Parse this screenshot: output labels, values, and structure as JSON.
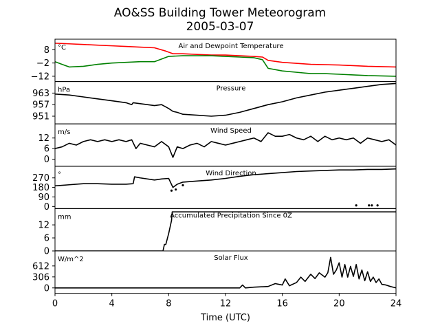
{
  "title": "AO&SS Building Tower Meteorogram",
  "subtitle": "2005-03-07",
  "xlabel": "Time (UTC)",
  "x_ticks": [
    "0",
    "4",
    "8",
    "12",
    "16",
    "20",
    "24"
  ],
  "colors": {
    "temperature": "#ff0000",
    "dewpoint": "#008000",
    "default": "#000000"
  },
  "chart_data": [
    {
      "type": "line",
      "title": "Air and Dewpoint Temperature",
      "unit": "°C",
      "xlim": [
        0,
        24
      ],
      "ylim": [
        -16,
        16
      ],
      "yticks": [
        8,
        -2,
        -12
      ],
      "ytick_labels": [
        "8",
        "−2",
        "−12"
      ],
      "series": [
        {
          "key": "temperature",
          "x": [
            0,
            1,
            2,
            3,
            4,
            5,
            6,
            7,
            7.8,
            8.3,
            9,
            10,
            11,
            12,
            13,
            14,
            14.6,
            15,
            16,
            18,
            20,
            22,
            24
          ],
          "values": [
            13,
            12.5,
            12,
            11.5,
            11,
            10.5,
            10,
            9.5,
            7,
            5,
            5,
            4.5,
            4,
            4,
            3.5,
            3,
            2.5,
            0,
            -1.5,
            -3,
            -3.5,
            -4.5,
            -5
          ]
        },
        {
          "key": "dewpoint",
          "x": [
            0,
            0.5,
            1,
            2,
            3,
            4,
            5,
            6,
            7,
            8,
            9,
            10,
            11,
            12,
            13,
            14,
            14.6,
            15,
            16,
            17,
            18,
            19,
            20,
            22,
            24
          ],
          "values": [
            -1,
            -3,
            -5,
            -4.5,
            -3,
            -2,
            -1.5,
            -1,
            -1,
            3,
            3.5,
            3.5,
            3.5,
            3,
            2.5,
            2,
            0.5,
            -6,
            -8,
            -9,
            -10,
            -10,
            -10.5,
            -11.5,
            -12
          ]
        }
      ]
    },
    {
      "type": "line",
      "title": "Pressure",
      "unit": "hPa",
      "xlim": [
        0,
        24
      ],
      "ylim": [
        947,
        969
      ],
      "yticks": [
        963,
        957,
        951
      ],
      "ytick_labels": [
        "963",
        "957",
        "951"
      ],
      "series": [
        {
          "key": "default",
          "x": [
            0,
            1,
            2,
            3,
            4,
            5,
            5.4,
            5.5,
            6,
            7,
            7.5,
            8,
            8.3,
            8.6,
            9,
            10,
            11,
            12,
            13,
            14,
            15,
            16,
            17,
            18,
            19,
            20,
            21,
            22,
            23,
            24
          ],
          "values": [
            962.5,
            962,
            961,
            960,
            959,
            958,
            957,
            958,
            957.5,
            956.5,
            957,
            955,
            953.5,
            953,
            952,
            951.5,
            951,
            951.5,
            953,
            955,
            957,
            958.5,
            960.5,
            962,
            963.5,
            964.5,
            965.5,
            966.5,
            967.5,
            968
          ]
        }
      ]
    },
    {
      "type": "line",
      "title": "Wind Speed",
      "unit": "m/s",
      "xlim": [
        0,
        24
      ],
      "ylim": [
        -4,
        20
      ],
      "yticks": [
        12,
        6,
        0
      ],
      "ytick_labels": [
        "12",
        "6",
        "0"
      ],
      "series": [
        {
          "key": "default",
          "x": [
            0,
            0.5,
            1,
            1.5,
            2,
            2.5,
            3,
            3.5,
            4,
            4.5,
            5,
            5.4,
            5.7,
            6,
            6.5,
            7,
            7.5,
            8,
            8.3,
            8.6,
            9,
            9.5,
            10,
            10.5,
            11,
            11.5,
            12,
            12.5,
            13,
            13.5,
            14,
            14.5,
            15,
            15.5,
            16,
            16.5,
            17,
            17.5,
            18,
            18.5,
            19,
            19.5,
            20,
            20.5,
            21,
            21.5,
            22,
            22.5,
            23,
            23.5,
            24
          ],
          "values": [
            6,
            7,
            9,
            8,
            10,
            11,
            10,
            11,
            10,
            11,
            10,
            11,
            6,
            9,
            8,
            7,
            10,
            7,
            1,
            7,
            6,
            8,
            9,
            7,
            10,
            9,
            8,
            9,
            10,
            11,
            12,
            10,
            15,
            13,
            13,
            14,
            12,
            11,
            13,
            10,
            13,
            11,
            12,
            11,
            12,
            9,
            12,
            11,
            10,
            11,
            8
          ]
        }
      ]
    },
    {
      "type": "line",
      "title": "Wind Direction",
      "unit": "°",
      "xlim": [
        0,
        24
      ],
      "ylim": [
        -20,
        380
      ],
      "yticks": [
        270,
        180,
        90,
        0
      ],
      "ytick_labels": [
        "270",
        "180",
        "90",
        "0"
      ],
      "series": [
        {
          "key": "default",
          "x": [
            0,
            0.5,
            1,
            1.5,
            2,
            3,
            4,
            5,
            5.5,
            5.6,
            6,
            7,
            7.5,
            8,
            8.3,
            8.6,
            9,
            10,
            11,
            12,
            13,
            14,
            15,
            16,
            17,
            18,
            19,
            20,
            21,
            22,
            23,
            24
          ],
          "values": [
            195,
            200,
            205,
            210,
            215,
            215,
            210,
            210,
            215,
            280,
            270,
            250,
            260,
            265,
            180,
            210,
            230,
            240,
            250,
            265,
            285,
            300,
            310,
            320,
            330,
            335,
            340,
            345,
            345,
            350,
            350,
            355
          ]
        },
        {
          "key": "default",
          "mode": "points",
          "x": [
            8.2,
            8.5,
            9.0,
            21.2,
            22.1,
            22.3,
            22.7
          ],
          "values": [
            150,
            160,
            200,
            10,
            10,
            10,
            10
          ]
        }
      ]
    },
    {
      "type": "line",
      "title": "Accumulated Precipitation Since 0Z",
      "unit": "mm",
      "xlim": [
        0,
        24
      ],
      "ylim": [
        0,
        19.5
      ],
      "yticks": [
        12,
        6,
        0
      ],
      "ytick_labels": [
        "12",
        "6",
        "0"
      ],
      "series": [
        {
          "key": "default",
          "x": [
            0,
            7.6,
            7.7,
            7.8,
            8.0,
            8.2,
            8.25,
            24
          ],
          "values": [
            0,
            0,
            3,
            3,
            8,
            14,
            18,
            18
          ]
        }
      ]
    },
    {
      "type": "line",
      "title": "Solar Flux",
      "unit": "W/m^2",
      "xlim": [
        0,
        24
      ],
      "ylim": [
        -150,
        1030
      ],
      "yticks": [
        612,
        306,
        0
      ],
      "ytick_labels": [
        "612",
        "306",
        "0"
      ],
      "series": [
        {
          "key": "default",
          "x": [
            0,
            13,
            13.2,
            13.4,
            14,
            15,
            15.5,
            16,
            16.2,
            16.5,
            17,
            17.3,
            17.6,
            18,
            18.3,
            18.6,
            19,
            19.2,
            19.4,
            19.6,
            19.8,
            20,
            20.2,
            20.4,
            20.6,
            20.8,
            21,
            21.2,
            21.4,
            21.6,
            21.8,
            22,
            22.2,
            22.4,
            22.6,
            22.8,
            23,
            23.3,
            23.6,
            24
          ],
          "values": [
            0,
            0,
            80,
            0,
            20,
            40,
            120,
            80,
            250,
            60,
            150,
            300,
            180,
            380,
            260,
            420,
            300,
            420,
            850,
            380,
            500,
            700,
            300,
            650,
            300,
            600,
            320,
            650,
            250,
            500,
            200,
            450,
            180,
            300,
            150,
            250,
            100,
            80,
            40,
            0
          ]
        }
      ]
    }
  ]
}
